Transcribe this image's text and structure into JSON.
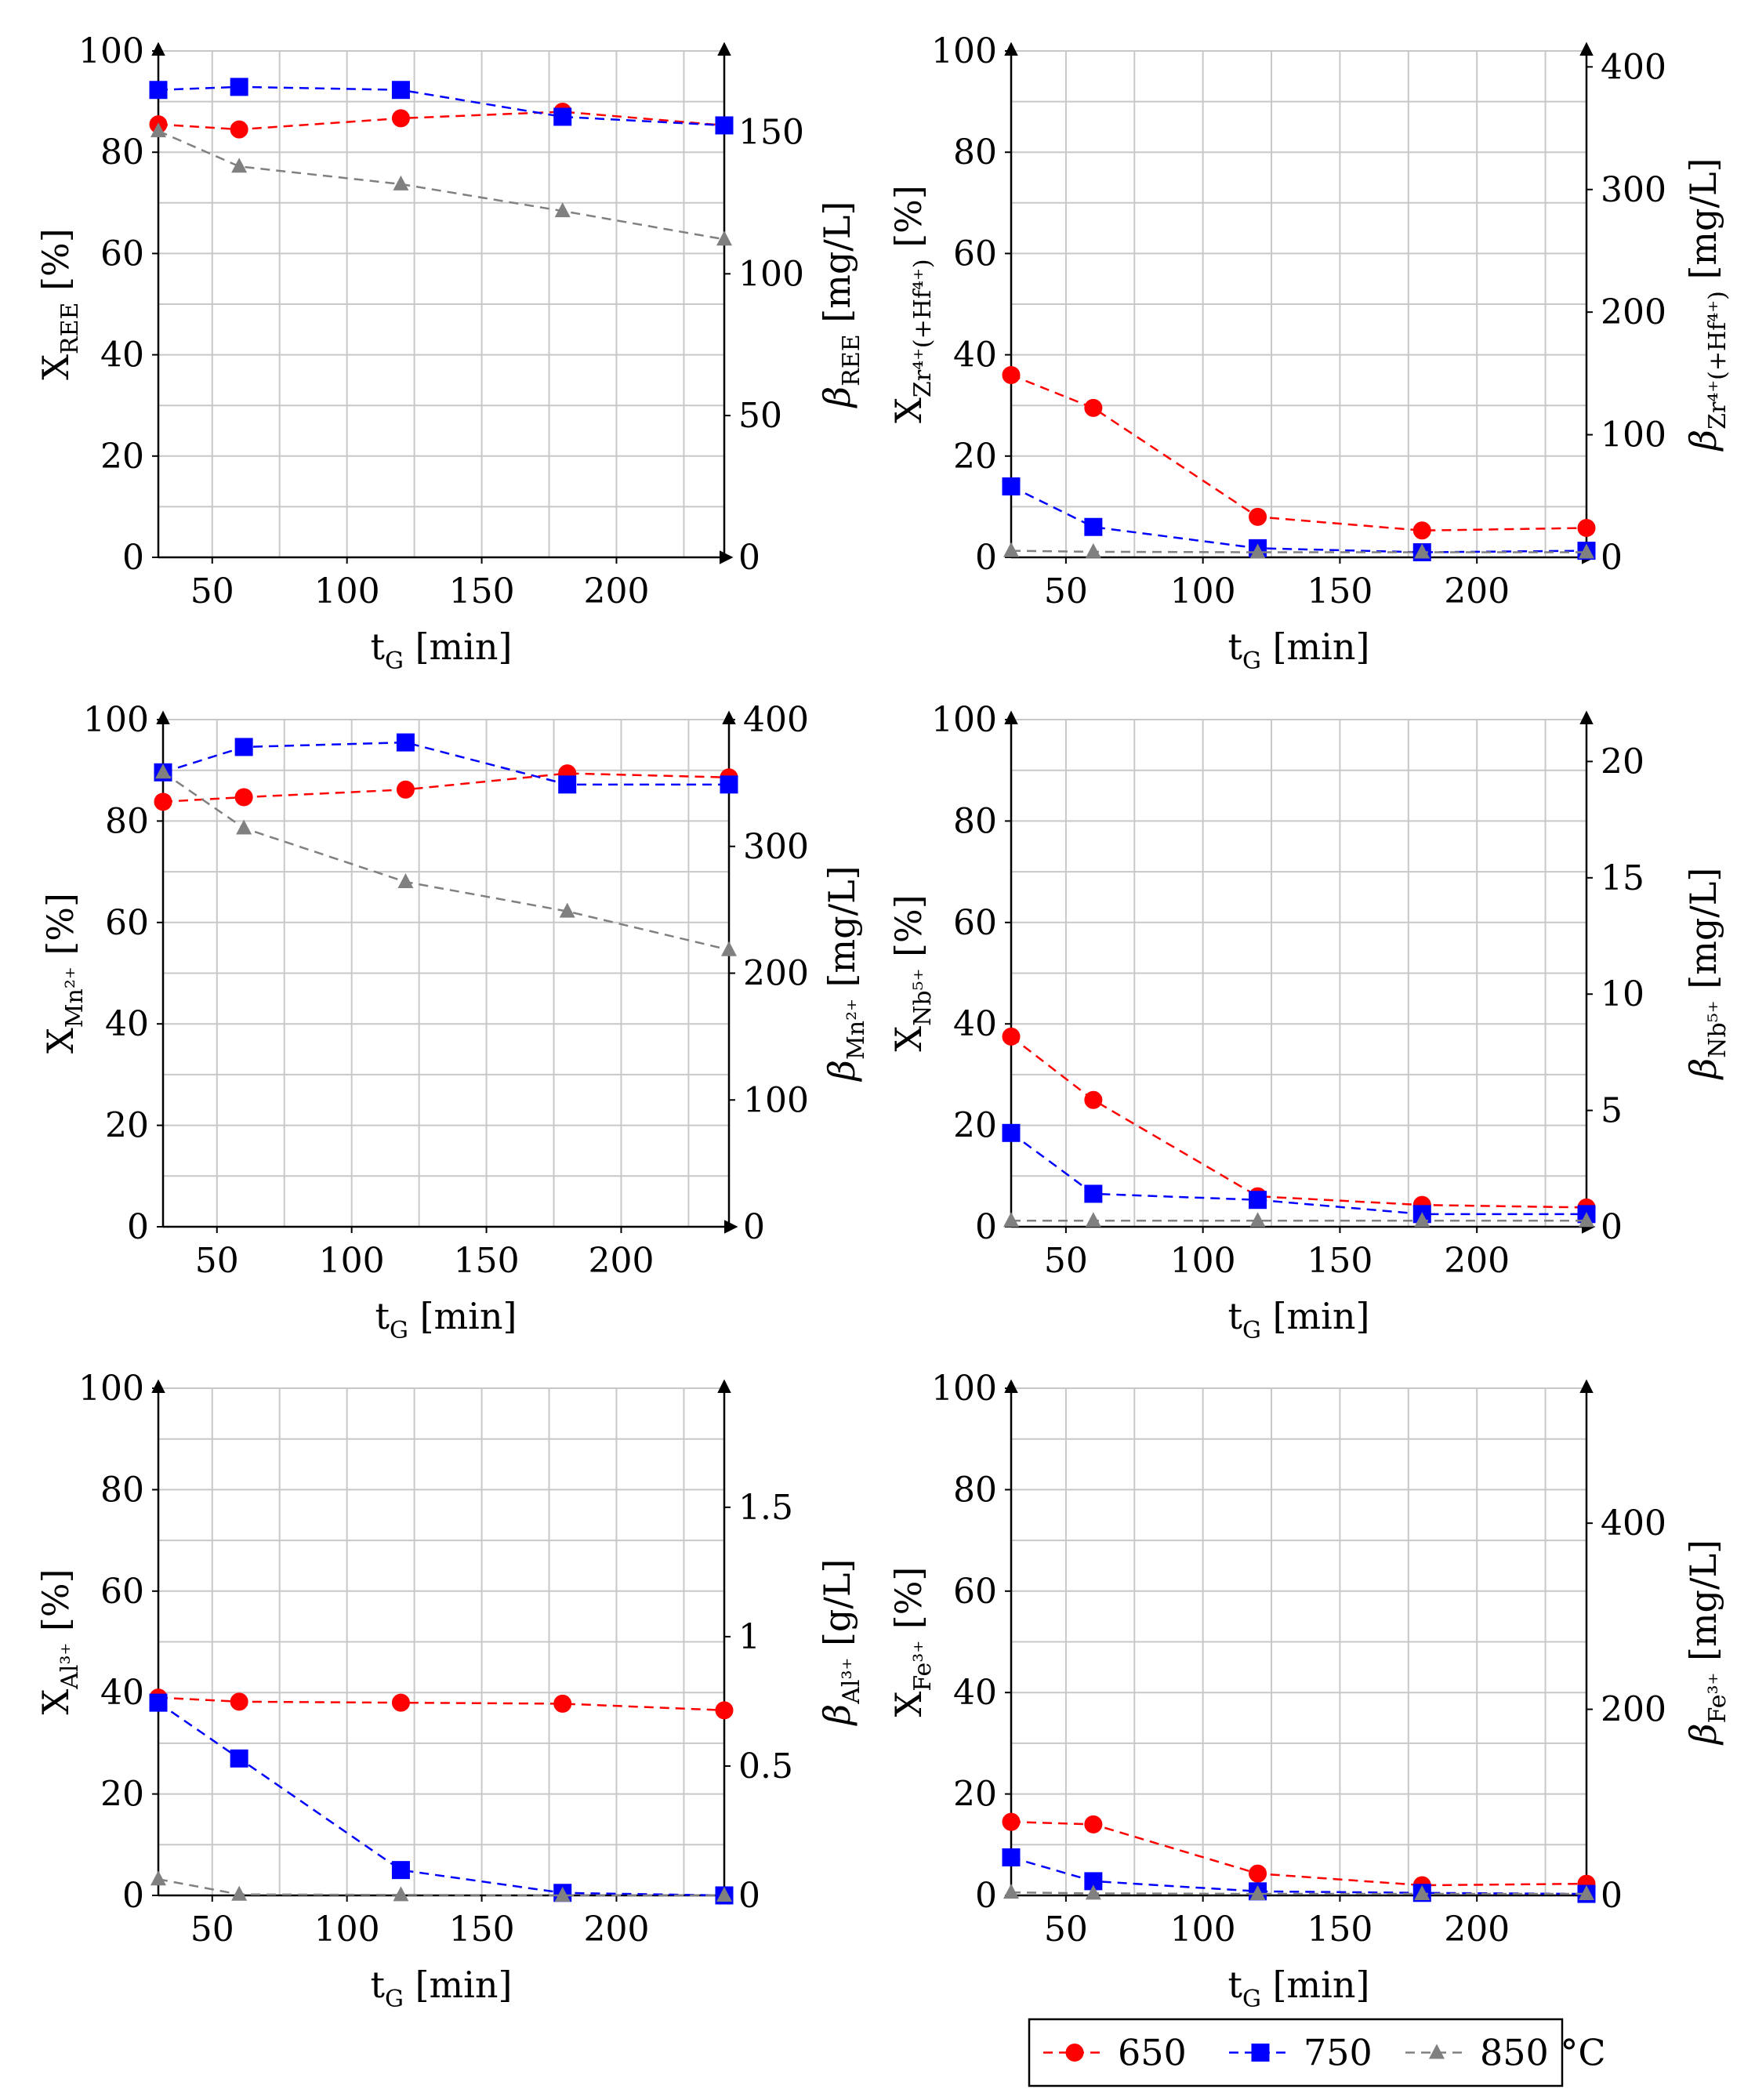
{
  "figure": {
    "legend": {
      "entries": [
        {
          "label": "650",
          "color": "#ff0000",
          "marker": "circle"
        },
        {
          "label": "750",
          "color": "#0000ff",
          "marker": "square"
        },
        {
          "label": "850 °C",
          "color": "#808080",
          "marker": "triangle"
        }
      ]
    }
  },
  "chart_data": [
    {
      "id": "REE",
      "type": "line",
      "x": [
        30,
        60,
        120,
        180,
        240
      ],
      "xticks": [
        50,
        100,
        150,
        200
      ],
      "xlim": [
        30,
        240
      ],
      "xlabel": "t",
      "xlabel_sub": "G",
      "xlabel_unit": " [min]",
      "ylim": [
        0,
        100
      ],
      "yticks": [
        0,
        20,
        40,
        60,
        80,
        100
      ],
      "ylabel": "X",
      "ylabel_sub": "REE",
      "ylabel_unit": " [%]",
      "y2lim": [
        0,
        178.6
      ],
      "y2ticks": [
        0,
        50,
        100,
        150
      ],
      "y2tick_labels": [
        "0",
        "50",
        "100",
        "150"
      ],
      "y2label": "β",
      "y2label_sub": "REE",
      "y2label_unit": " [mg/L]",
      "series": [
        {
          "name": "650",
          "values": [
            85.5,
            84.5,
            86.7,
            88.0,
            85.3
          ]
        },
        {
          "name": "750",
          "values": [
            92.3,
            92.9,
            92.3,
            87.0,
            85.3
          ]
        },
        {
          "name": "850",
          "values": [
            84.2,
            77.2,
            73.7,
            68.4,
            62.8
          ]
        }
      ]
    },
    {
      "id": "Zr",
      "type": "line",
      "x": [
        30,
        60,
        120,
        180,
        240
      ],
      "xticks": [
        50,
        100,
        150,
        200
      ],
      "xlim": [
        30,
        240
      ],
      "xlabel": "t",
      "xlabel_sub": "G",
      "xlabel_unit": " [min]",
      "ylim": [
        0,
        100
      ],
      "yticks": [
        0,
        20,
        40,
        60,
        80,
        100
      ],
      "ylabel": "X",
      "ylabel_sub": "Zr⁴⁺(+Hf⁴⁺)",
      "ylabel_unit": " [%]",
      "y2lim": [
        0,
        413
      ],
      "y2ticks": [
        0,
        100,
        200,
        300,
        400
      ],
      "y2tick_labels": [
        "0",
        "100",
        "200",
        "300",
        "400"
      ],
      "y2label": "β",
      "y2label_sub": "Zr⁴⁺(+Hf⁴⁺)",
      "y2label_unit": " [mg/L]",
      "series": [
        {
          "name": "650",
          "values": [
            36.0,
            29.5,
            8.0,
            5.3,
            5.8
          ]
        },
        {
          "name": "750",
          "values": [
            14.0,
            6.0,
            1.8,
            1.0,
            1.3
          ]
        },
        {
          "name": "850",
          "values": [
            1.3,
            1.1,
            1.0,
            1.0,
            1.0
          ]
        }
      ]
    },
    {
      "id": "Mn",
      "type": "line",
      "x": [
        30,
        60,
        120,
        180,
        240
      ],
      "xticks": [
        50,
        100,
        150,
        200
      ],
      "xlim": [
        30,
        240
      ],
      "xlabel": "t",
      "xlabel_sub": "G",
      "xlabel_unit": " [min]",
      "ylim": [
        0,
        100
      ],
      "yticks": [
        0,
        20,
        40,
        60,
        80,
        100
      ],
      "ylabel": "X",
      "ylabel_sub": "Mn²⁺",
      "ylabel_unit": " [%]",
      "y2lim": [
        0,
        400
      ],
      "y2ticks": [
        0,
        100,
        200,
        300,
        400
      ],
      "y2tick_labels": [
        "0",
        "100",
        "200",
        "300",
        "400"
      ],
      "y2label": "β",
      "y2label_sub": "Mn²⁺",
      "y2label_unit": " [mg/L]",
      "series": [
        {
          "name": "650",
          "values": [
            83.8,
            84.7,
            86.2,
            89.4,
            88.6
          ]
        },
        {
          "name": "750",
          "values": [
            89.6,
            94.6,
            95.5,
            87.2,
            87.2
          ]
        },
        {
          "name": "850",
          "values": [
            89.6,
            78.6,
            68.0,
            62.2,
            54.6
          ]
        }
      ]
    },
    {
      "id": "Nb",
      "type": "line",
      "x": [
        30,
        60,
        120,
        180,
        240
      ],
      "xticks": [
        50,
        100,
        150,
        200
      ],
      "xlim": [
        30,
        240
      ],
      "xlabel": "t",
      "xlabel_sub": "G",
      "xlabel_unit": " [min]",
      "ylim": [
        0,
        100
      ],
      "yticks": [
        0,
        20,
        40,
        60,
        80,
        100
      ],
      "ylabel": "X",
      "ylabel_sub": "Nb⁵⁺",
      "ylabel_unit": " [%]",
      "y2lim": [
        0,
        21.8
      ],
      "y2ticks": [
        0,
        5,
        10,
        15,
        20
      ],
      "y2tick_labels": [
        "0",
        "5",
        "10",
        "15",
        "20"
      ],
      "y2label": "β",
      "y2label_sub": "Nb⁵⁺",
      "y2label_unit": " [mg/L]",
      "series": [
        {
          "name": "650",
          "values": [
            37.5,
            25.0,
            6.0,
            4.3,
            3.8
          ]
        },
        {
          "name": "750",
          "values": [
            18.5,
            6.5,
            5.3,
            2.5,
            2.5
          ]
        },
        {
          "name": "850",
          "values": [
            1.2,
            1.2,
            1.2,
            1.2,
            1.2
          ]
        }
      ]
    },
    {
      "id": "Al",
      "type": "line",
      "x": [
        30,
        60,
        120,
        180,
        240
      ],
      "xticks": [
        50,
        100,
        150,
        200
      ],
      "xlim": [
        30,
        240
      ],
      "xlabel": "t",
      "xlabel_sub": "G",
      "xlabel_unit": " [min]",
      "ylim": [
        0,
        100
      ],
      "yticks": [
        0,
        20,
        40,
        60,
        80,
        100
      ],
      "ylabel": "X",
      "ylabel_sub": "Al³⁺",
      "ylabel_unit": " [%]",
      "y2lim": [
        0,
        1.96
      ],
      "y2ticks": [
        0,
        0.5,
        1,
        1.5
      ],
      "y2tick_labels": [
        "0",
        "0.5",
        "1",
        "1.5"
      ],
      "y2label": "β",
      "y2label_sub": "Al³⁺",
      "y2label_unit": " [g/L]",
      "series": [
        {
          "name": "650",
          "values": [
            39.0,
            38.2,
            38.0,
            37.8,
            36.5
          ]
        },
        {
          "name": "750",
          "values": [
            38.0,
            27.0,
            5.0,
            0.5,
            0.0
          ]
        },
        {
          "name": "850",
          "values": [
            3.2,
            0.2,
            0.1,
            0.0,
            0.0
          ]
        }
      ]
    },
    {
      "id": "Fe",
      "type": "line",
      "x": [
        30,
        60,
        120,
        180,
        240
      ],
      "xticks": [
        50,
        100,
        150,
        200
      ],
      "xlim": [
        30,
        240
      ],
      "xlabel": "t",
      "xlabel_sub": "G",
      "xlabel_unit": " [min]",
      "ylim": [
        0,
        100
      ],
      "yticks": [
        0,
        20,
        40,
        60,
        80,
        100
      ],
      "ylabel": "X",
      "ylabel_sub": "Fe³⁺",
      "ylabel_unit": " [%]",
      "y2lim": [
        0,
        545
      ],
      "y2ticks": [
        0,
        200,
        400
      ],
      "y2tick_labels": [
        "0",
        "200",
        "400"
      ],
      "y2label": "β",
      "y2label_sub": "Fe³⁺",
      "y2label_unit": " [mg/L]",
      "series": [
        {
          "name": "650",
          "values": [
            14.5,
            14.0,
            4.3,
            2.0,
            2.3
          ]
        },
        {
          "name": "750",
          "values": [
            7.5,
            2.8,
            0.8,
            0.5,
            0.3
          ]
        },
        {
          "name": "850",
          "values": [
            0.6,
            0.4,
            0.3,
            0.3,
            0.3
          ]
        }
      ]
    }
  ]
}
